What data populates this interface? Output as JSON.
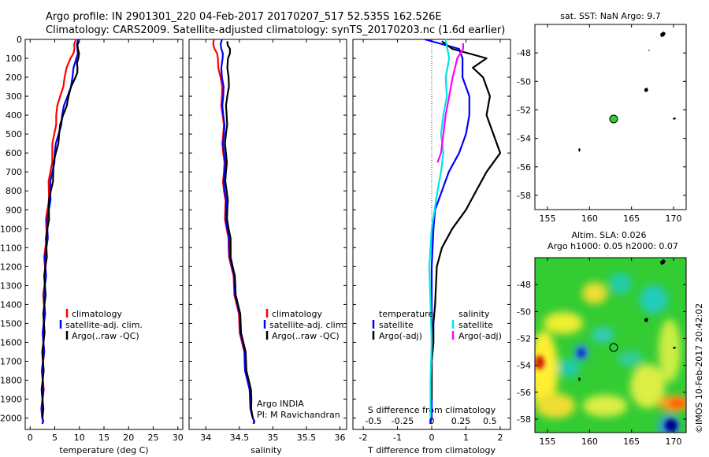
{
  "header": {
    "line1": "Argo profile: IN 2901301_220 04-Feb-2017 20170207_517 52.535S 162.526E",
    "line2": "Climatology: CARS2009. Satellite-adjusted climatology: synTS_20170203.nc (1.6d earlier)"
  },
  "colors": {
    "climatology": "#ff0000",
    "satellite": "#0000ff",
    "argo": "#000000",
    "satellite_s": "#00e5e5",
    "argo_s": "#ff00ff",
    "float_marker": "#33cc33"
  },
  "chart_data": [
    {
      "type": "line",
      "panel": "temperature",
      "xlabel": "temperature (deg C)",
      "ylabel": "",
      "xlim": [
        -1,
        31
      ],
      "ylim": [
        2060,
        0
      ],
      "y_ticks": [
        0,
        100,
        200,
        300,
        400,
        500,
        600,
        700,
        800,
        900,
        1000,
        1100,
        1200,
        1300,
        1400,
        1500,
        1600,
        1700,
        1800,
        1900,
        2000
      ],
      "x_ticks": [
        0,
        5,
        10,
        15,
        20,
        25,
        30
      ],
      "legend": [
        "climatology",
        "satellite-adj. clim.",
        "Argo(..raw -QC)"
      ],
      "series": [
        {
          "name": "climatology",
          "color": "#ff0000",
          "x": [
            9.3,
            9.0,
            8.2,
            7.0,
            6.1,
            5.3,
            4.9,
            4.5,
            4.1,
            3.8,
            3.5,
            3.3,
            3.1,
            3.0,
            2.9,
            2.8,
            2.75,
            2.7,
            2.65,
            2.6,
            2.55,
            2.5,
            2.5
          ],
          "y": [
            0,
            50,
            100,
            200,
            300,
            400,
            500,
            600,
            700,
            800,
            900,
            1000,
            1100,
            1200,
            1300,
            1400,
            1500,
            1600,
            1700,
            1800,
            1900,
            2000,
            2030
          ]
        },
        {
          "name": "satellite-adj. clim.",
          "color": "#0000ff",
          "x": [
            9.8,
            9.6,
            9.4,
            8.6,
            7.6,
            6.5,
            5.8,
            5.0,
            4.5,
            4.1,
            3.8,
            3.5,
            3.3,
            3.1,
            3.0,
            2.9,
            2.8,
            2.7,
            2.6,
            2.55,
            2.5,
            2.45,
            2.45
          ],
          "y": [
            0,
            50,
            100,
            200,
            300,
            400,
            500,
            600,
            700,
            800,
            900,
            1000,
            1100,
            1200,
            1300,
            1400,
            1500,
            1600,
            1700,
            1800,
            1900,
            2000,
            2030
          ]
        },
        {
          "name": "Argo(..raw -QC)",
          "color": "#000000",
          "x": [
            9.9,
            9.7,
            9.8,
            9.6,
            9.2,
            7.8,
            6.7,
            5.9,
            5.2,
            4.7,
            4.2,
            3.8,
            3.5,
            3.3,
            3.1,
            3.0,
            2.9,
            2.8,
            2.7,
            2.6,
            2.55,
            2.5,
            2.5
          ],
          "y": [
            10,
            50,
            100,
            150,
            200,
            300,
            400,
            500,
            600,
            700,
            800,
            900,
            1000,
            1100,
            1200,
            1300,
            1400,
            1500,
            1600,
            1700,
            1800,
            1900,
            2000
          ]
        }
      ]
    },
    {
      "type": "line",
      "panel": "salinity",
      "xlabel": "salinity",
      "xlim": [
        33.75,
        36.1
      ],
      "ylim": [
        2060,
        0
      ],
      "x_ticks": [
        34,
        34.5,
        35,
        35.5,
        36
      ],
      "legend": [
        "climatology",
        "satellite-adj. clim.",
        "Argo(..raw -QC)"
      ],
      "annotation": [
        "Argo INDIA",
        "PI: M Ravichandran"
      ],
      "series": [
        {
          "name": "climatology",
          "color": "#ff0000",
          "x": [
            34.12,
            34.13,
            34.18,
            34.22,
            34.24,
            34.25,
            34.26,
            34.26,
            34.27,
            34.27,
            34.29,
            34.31,
            34.34,
            34.38,
            34.42,
            34.46,
            34.5,
            34.54,
            34.58,
            34.62,
            34.66,
            34.7,
            34.72
          ],
          "y": [
            0,
            50,
            100,
            200,
            300,
            400,
            500,
            600,
            700,
            800,
            900,
            1000,
            1100,
            1200,
            1300,
            1400,
            1500,
            1600,
            1700,
            1800,
            1900,
            2000,
            2030
          ]
        },
        {
          "name": "satellite-adj. clim.",
          "color": "#0000ff",
          "x": [
            34.24,
            34.23,
            34.25,
            34.24,
            34.26,
            34.26,
            34.27,
            34.27,
            34.28,
            34.28,
            34.3,
            34.32,
            34.35,
            34.39,
            34.43,
            34.47,
            34.51,
            34.55,
            34.58,
            34.62,
            34.66,
            34.7,
            34.71
          ],
          "y": [
            0,
            50,
            100,
            200,
            300,
            400,
            500,
            600,
            700,
            800,
            900,
            1000,
            1100,
            1200,
            1300,
            1400,
            1500,
            1600,
            1700,
            1800,
            1900,
            2000,
            2030
          ]
        },
        {
          "name": "Argo(..raw -QC)",
          "color": "#000000",
          "x": [
            34.32,
            34.36,
            34.33,
            34.34,
            34.32,
            34.31,
            34.3,
            34.3,
            34.3,
            34.31,
            34.32,
            34.34,
            34.37,
            34.4,
            34.44,
            34.48,
            34.52,
            34.56,
            34.6,
            34.64,
            34.68,
            34.7
          ],
          "y": [
            10,
            50,
            100,
            200,
            300,
            400,
            500,
            600,
            700,
            800,
            900,
            1000,
            1100,
            1200,
            1300,
            1400,
            1500,
            1600,
            1700,
            1800,
            1900,
            2000
          ]
        }
      ]
    },
    {
      "type": "line",
      "panel": "differences",
      "xlabel": "T difference from climatology",
      "xlabel_top": "S difference from climatology",
      "xlim": [
        -2.3,
        2.3
      ],
      "ylim": [
        2060,
        0
      ],
      "x_ticks": [
        -2,
        -1,
        0,
        1,
        2
      ],
      "x_ticks_s": [
        "-0.5",
        "-0.25",
        "0",
        "0.25",
        "0.5"
      ],
      "legend_left_title": "temperature",
      "legend_right_title": "salinity",
      "legend": [
        "satellite",
        "Argo(-adj)",
        "satellite",
        "Argo(-adj)"
      ],
      "series": [
        {
          "name": "satellite",
          "quantity": "temperature",
          "color": "#0000ff",
          "x": [
            -0.2,
            0.8,
            0.9,
            0.9,
            1.1,
            1.1,
            1.0,
            0.8,
            0.5,
            0.3,
            0.1,
            0.05,
            0.0,
            0.0,
            0.0,
            0.0,
            0.0,
            0.0,
            0.0,
            0.0,
            -0.05
          ],
          "y": [
            0,
            50,
            100,
            200,
            300,
            400,
            500,
            600,
            700,
            800,
            900,
            1000,
            1200,
            1400,
            1500,
            1600,
            1700,
            1800,
            1900,
            2000,
            2030
          ]
        },
        {
          "name": "Argo(-adj)",
          "quantity": "temperature",
          "color": "#000000",
          "x": [
            0.3,
            0.6,
            1.6,
            1.2,
            1.5,
            1.7,
            1.6,
            2.0,
            1.6,
            1.3,
            1.0,
            0.6,
            0.3,
            0.15,
            0.1,
            0.05,
            0.05,
            0.0,
            0.0,
            0.0
          ],
          "y": [
            10,
            50,
            100,
            150,
            200,
            300,
            400,
            600,
            700,
            800,
            900,
            1000,
            1100,
            1200,
            1400,
            1500,
            1600,
            1700,
            1800,
            1900
          ]
        },
        {
          "name": "satellite",
          "quantity": "salinity",
          "color": "#00e5e5",
          "x": [
            0.12,
            0.15,
            0.12,
            0.13,
            0.1,
            0.08,
            0.1,
            0.08,
            0.05,
            0.0,
            -0.02,
            -0.01,
            0.0,
            -0.01,
            -0.01
          ],
          "y": [
            0,
            100,
            200,
            300,
            400,
            500,
            600,
            700,
            800,
            1000,
            1200,
            1400,
            1600,
            1800,
            2000
          ]
        },
        {
          "name": "Argo(-adj)",
          "quantity": "salinity",
          "color": "#ff00ff",
          "x": [
            0.27,
            0.27,
            0.22,
            0.18,
            0.15,
            0.12,
            0.1,
            0.08,
            0.05
          ],
          "y": [
            20,
            50,
            100,
            200,
            300,
            400,
            500,
            600,
            650
          ]
        }
      ]
    }
  ],
  "sst_map": {
    "title": "sat. SST: NaN Argo: 9.7",
    "x_ticks": [
      155,
      160,
      165,
      170
    ],
    "y_ticks": [
      -48,
      -50,
      -52,
      -54,
      -56,
      -58
    ],
    "xlim": [
      153.5,
      171.5
    ],
    "ylim": [
      -59,
      -46
    ],
    "float_lon": 162.526,
    "float_lat": -52.535
  },
  "sla_map": {
    "title": "Altim. SLA: 0.026",
    "subtitle": "Argo h1000: 0.05 h2000: 0.07",
    "x_ticks": [
      155,
      160,
      165,
      170
    ],
    "y_ticks": [
      -48,
      -50,
      -52,
      -54,
      -56,
      -58
    ],
    "xlim": [
      153.5,
      171.5
    ],
    "ylim": [
      -59,
      -46
    ],
    "float_lon": 162.526,
    "float_lat": -52.535
  },
  "credit": "©IMOS 10-Feb-2017 20:42:02"
}
